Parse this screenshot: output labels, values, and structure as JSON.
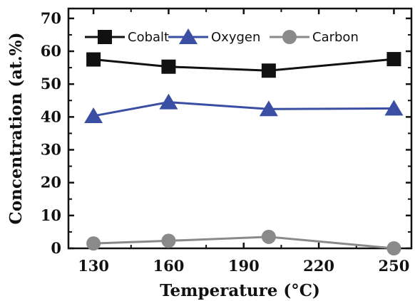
{
  "chart_data": {
    "type": "line",
    "xlabel": "Temperature (°C)",
    "ylabel": "Concentration (at.%)",
    "xlim": [
      120,
      257
    ],
    "ylim": [
      0,
      73
    ],
    "xticks": [
      130,
      160,
      190,
      220,
      250
    ],
    "xtick_labels": [
      "130",
      "160",
      "190",
      "220",
      "250"
    ],
    "yticks": [
      0,
      10,
      20,
      30,
      40,
      50,
      60,
      70
    ],
    "ytick_labels": [
      "0",
      "10",
      "20",
      "30",
      "40",
      "50",
      "60",
      "70"
    ],
    "grid": false,
    "legend_position": "top",
    "series": [
      {
        "name": "Cobalt",
        "marker": "square",
        "color": "#111111",
        "points": [
          [
            130,
            57.5
          ],
          [
            160,
            55.3
          ],
          [
            200,
            54.1
          ],
          [
            250,
            57.6
          ]
        ]
      },
      {
        "name": "Oxygen",
        "marker": "triangle",
        "color": "#3a4fa3",
        "points": [
          [
            130,
            40.3
          ],
          [
            160,
            44.5
          ],
          [
            200,
            42.4
          ],
          [
            250,
            42.6
          ]
        ]
      },
      {
        "name": "Carbon",
        "marker": "circle",
        "color": "#8a8a8a",
        "points": [
          [
            130,
            1.5
          ],
          [
            160,
            2.3
          ],
          [
            200,
            3.5
          ],
          [
            250,
            0.0
          ]
        ]
      }
    ]
  }
}
